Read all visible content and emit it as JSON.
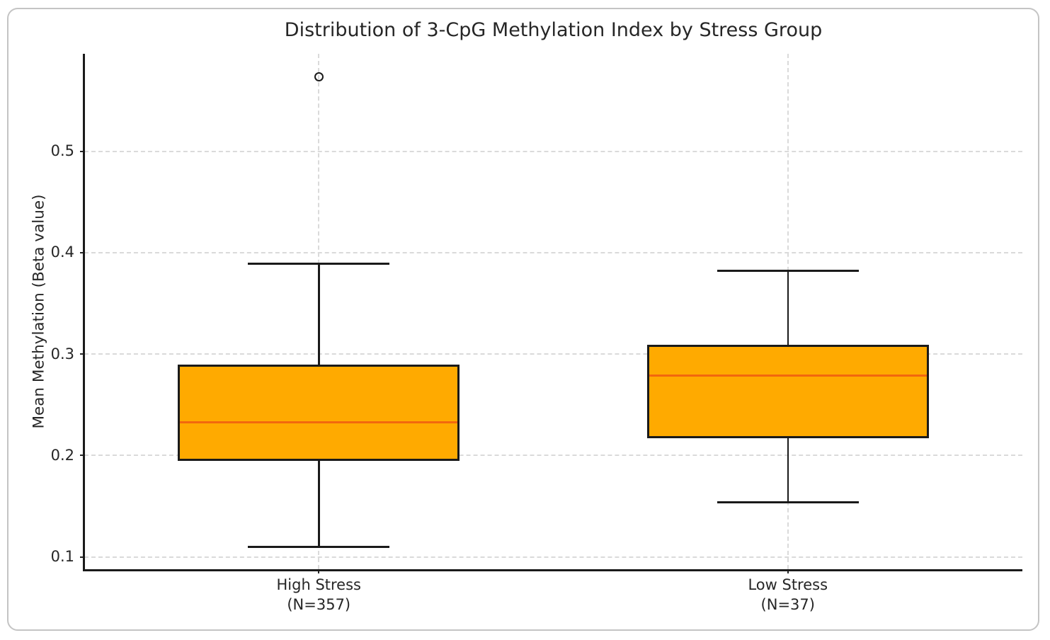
{
  "chart_data": {
    "type": "boxplot",
    "title": "Distribution of 3-CpG Methylation Index by Stress Group",
    "ylabel": "Mean Methylation (Beta value)",
    "xlabel": "",
    "yticks": [
      0.1,
      0.2,
      0.3,
      0.4,
      0.5
    ],
    "ylim": [
      0.088,
      0.596
    ],
    "grid": {
      "show": true,
      "style": "dashed",
      "horizontal_at_yticks": true,
      "vertical_at_categories": true
    },
    "legend": "none",
    "groups": [
      {
        "label": "High Stress",
        "n_label": "(N=357)",
        "whisker_low": 0.11,
        "q1": 0.195,
        "median": 0.233,
        "q3": 0.29,
        "whisker_high": 0.389,
        "outliers": [
          0.573
        ]
      },
      {
        "label": "Low Stress",
        "n_label": "(N=37)",
        "whisker_low": 0.154,
        "q1": 0.217,
        "median": 0.279,
        "q3": 0.309,
        "whisker_high": 0.382,
        "outliers": []
      }
    ],
    "colors": {
      "box_fill": "#ffaa00",
      "box_edge": "#1a1a1a",
      "median": "#f2670e",
      "whisker": "#1a1a1a",
      "outlier_edge": "#1a1a1a",
      "gridline": "#dadada",
      "text": "#262626",
      "frame_border": "#c4c4c4",
      "background": "#ffffff"
    }
  }
}
